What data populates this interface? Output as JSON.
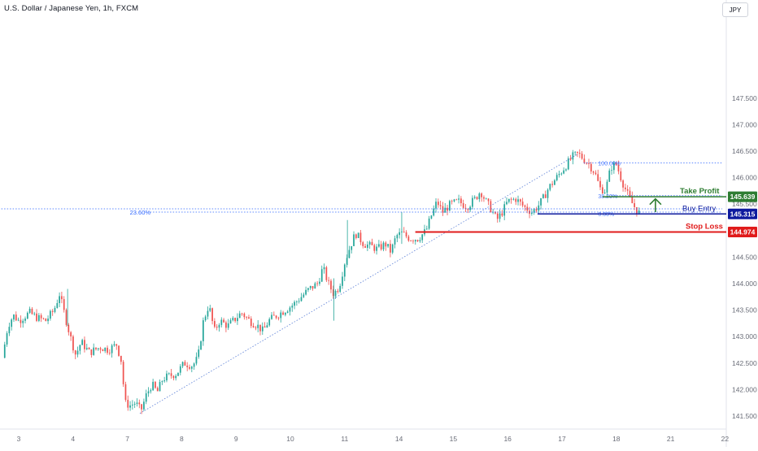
{
  "header": {
    "symbol_title": "U.S. Dollar / Japanese Yen, 1h, FXCM",
    "currency_button": "JPY"
  },
  "colors": {
    "up": "#26a69a",
    "down": "#ef5350",
    "take_profit": "#2e7d32",
    "buy_entry": "#0d1a9e",
    "stop_loss": "#e01b1b",
    "fib": "#2962ff",
    "axis_text": "#6a6d78"
  },
  "chart_data": {
    "type": "candlestick",
    "x_ticks": [
      {
        "label": "3",
        "x": 0.0
      },
      {
        "label": "4",
        "x": 1.0
      },
      {
        "label": "7",
        "x": 2.0
      },
      {
        "label": "8",
        "x": 3.0
      },
      {
        "label": "9",
        "x": 4.0
      },
      {
        "label": "10",
        "x": 5.0
      },
      {
        "label": "11",
        "x": 6.0
      },
      {
        "label": "14",
        "x": 7.0
      },
      {
        "label": "15",
        "x": 8.0
      },
      {
        "label": "16",
        "x": 9.0
      },
      {
        "label": "17",
        "x": 10.0
      },
      {
        "label": "18",
        "x": 11.0
      },
      {
        "label": "21",
        "x": 12.0
      },
      {
        "label": "22",
        "x": 13.0
      }
    ],
    "y_ticks": [
      141.5,
      142.0,
      142.5,
      143.0,
      143.5,
      144.0,
      144.5,
      145.5,
      146.0,
      146.5,
      147.0,
      147.5
    ],
    "ylim": [
      141.45,
      147.7
    ],
    "xlim": [
      -0.32,
      13.0
    ],
    "price_path": [
      [
        -0.3,
        142.6
      ],
      [
        -0.2,
        143.2
      ],
      [
        -0.1,
        143.4
      ],
      [
        0.0,
        143.3
      ],
      [
        0.2,
        143.45
      ],
      [
        0.35,
        143.35
      ],
      [
        0.5,
        143.3
      ],
      [
        0.65,
        143.5
      ],
      [
        0.75,
        143.8
      ],
      [
        0.85,
        143.4
      ],
      [
        0.95,
        143.0
      ],
      [
        1.05,
        142.65
      ],
      [
        1.15,
        142.9
      ],
      [
        1.3,
        142.7
      ],
      [
        1.5,
        142.8
      ],
      [
        1.65,
        142.75
      ],
      [
        1.8,
        142.85
      ],
      [
        1.9,
        142.5
      ],
      [
        1.95,
        141.75
      ],
      [
        2.05,
        141.7
      ],
      [
        2.15,
        141.75
      ],
      [
        2.25,
        141.6
      ],
      [
        2.35,
        141.9
      ],
      [
        2.45,
        142.1
      ],
      [
        2.55,
        141.95
      ],
      [
        2.65,
        142.2
      ],
      [
        2.75,
        142.25
      ],
      [
        2.9,
        142.3
      ],
      [
        3.05,
        142.5
      ],
      [
        3.2,
        142.45
      ],
      [
        3.3,
        142.6
      ],
      [
        3.4,
        143.3
      ],
      [
        3.5,
        143.6
      ],
      [
        3.6,
        143.1
      ],
      [
        3.7,
        143.3
      ],
      [
        3.85,
        143.2
      ],
      [
        4.0,
        143.35
      ],
      [
        4.1,
        143.45
      ],
      [
        4.25,
        143.3
      ],
      [
        4.4,
        143.2
      ],
      [
        4.5,
        143.1
      ],
      [
        4.6,
        143.3
      ],
      [
        4.75,
        143.4
      ],
      [
        4.9,
        143.5
      ],
      [
        5.05,
        143.6
      ],
      [
        5.2,
        143.75
      ],
      [
        5.35,
        143.9
      ],
      [
        5.5,
        144.0
      ],
      [
        5.6,
        144.3
      ],
      [
        5.7,
        144.0
      ],
      [
        5.8,
        143.8
      ],
      [
        5.9,
        143.95
      ],
      [
        6.0,
        144.4
      ],
      [
        6.1,
        144.7
      ],
      [
        6.2,
        144.95
      ],
      [
        6.35,
        144.75
      ],
      [
        6.5,
        144.7
      ],
      [
        6.6,
        144.65
      ],
      [
        6.75,
        144.75
      ],
      [
        6.85,
        144.6
      ],
      [
        6.95,
        144.9
      ],
      [
        7.05,
        144.95
      ],
      [
        7.2,
        144.85
      ],
      [
        7.35,
        144.85
      ],
      [
        7.5,
        145.0
      ],
      [
        7.6,
        145.3
      ],
      [
        7.7,
        145.55
      ],
      [
        7.8,
        145.35
      ],
      [
        7.95,
        145.5
      ],
      [
        8.1,
        145.55
      ],
      [
        8.25,
        145.45
      ],
      [
        8.4,
        145.6
      ],
      [
        8.5,
        145.75
      ],
      [
        8.6,
        145.55
      ],
      [
        8.7,
        145.4
      ],
      [
        8.8,
        145.2
      ],
      [
        8.9,
        145.35
      ],
      [
        9.0,
        145.55
      ],
      [
        9.15,
        145.6
      ],
      [
        9.3,
        145.45
      ],
      [
        9.45,
        145.35
      ],
      [
        9.55,
        145.45
      ],
      [
        9.65,
        145.6
      ],
      [
        9.75,
        145.8
      ],
      [
        9.9,
        146.0
      ],
      [
        10.05,
        146.2
      ],
      [
        10.2,
        146.4
      ],
      [
        10.3,
        146.45
      ],
      [
        10.4,
        146.35
      ],
      [
        10.5,
        146.25
      ],
      [
        10.6,
        146.1
      ],
      [
        10.7,
        145.8
      ],
      [
        10.8,
        145.75
      ],
      [
        10.9,
        146.2
      ],
      [
        11.0,
        146.25
      ],
      [
        11.1,
        145.95
      ],
      [
        11.2,
        145.7
      ],
      [
        11.3,
        145.5
      ],
      [
        11.4,
        145.35
      ],
      [
        11.45,
        145.32
      ]
    ],
    "trendline": {
      "x0": 2.23,
      "y0": 141.55,
      "x1": 10.3,
      "y1": 146.45
    },
    "fib_levels": [
      {
        "label": "100.00%",
        "y": 146.28,
        "x0": 10.4,
        "x1": 12.95,
        "label_x": 10.65
      },
      {
        "label": "38.20%",
        "y": 145.66,
        "x0": 10.9,
        "x1": 12.95,
        "label_x": 10.65
      },
      {
        "label": "0.00%",
        "y": 145.32,
        "x0": 10.9,
        "x1": 12.95,
        "label_x": 10.65
      }
    ],
    "fib_23_6": {
      "label": "23.60%",
      "y": 145.35,
      "x0": -0.32,
      "x1": 12.95,
      "label_x": 1.97
    },
    "horizontal_rays": [
      {
        "label": "Take Profit",
        "value": 145.639,
        "tag": "145.639",
        "x0": 10.75,
        "role": "take_profit"
      },
      {
        "label": "Buy Entry",
        "value": 145.315,
        "tag": "145.315",
        "x0": 9.55,
        "role": "buy_entry"
      },
      {
        "label": "Stop Loss",
        "value": 144.974,
        "tag": "144.974",
        "x0": 7.3,
        "role": "stop_loss"
      }
    ],
    "arrow": {
      "x": 11.72,
      "y0": 145.35,
      "y1": 145.6
    }
  }
}
